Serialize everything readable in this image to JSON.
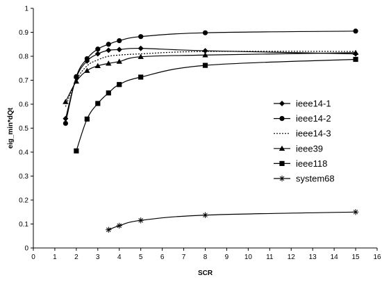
{
  "chart_data": {
    "type": "line",
    "title": "",
    "xlabel": "SCR",
    "ylabel": "eig_min*dQt",
    "xlim": [
      0,
      16
    ],
    "ylim": [
      0,
      1
    ],
    "xticks": [
      0,
      1,
      2,
      3,
      4,
      5,
      6,
      7,
      8,
      9,
      10,
      11,
      12,
      13,
      14,
      15,
      16
    ],
    "yticks": [
      0,
      0.1,
      0.2,
      0.3,
      0.4,
      0.5,
      0.6,
      0.7,
      0.8,
      0.9,
      1
    ],
    "xtick_labels": [
      "0",
      "1",
      "2",
      "3",
      "4",
      "5",
      "6",
      "7",
      "8",
      "9",
      "10",
      "11",
      "12",
      "13",
      "14",
      "15",
      "16"
    ],
    "ytick_labels": [
      "0",
      "0.1",
      "0.2",
      "0.3",
      "0.4",
      "0.5",
      "0.6",
      "0.7",
      "0.8",
      "0.9",
      "1"
    ],
    "grid": false,
    "legend_position": "right",
    "series": [
      {
        "name": "ieee14-1",
        "marker": "diamond",
        "dash": "solid",
        "x": [
          1.5,
          2,
          2.5,
          3,
          3.5,
          4,
          5,
          8,
          15
        ],
        "y": [
          0.54,
          0.71,
          0.78,
          0.81,
          0.825,
          0.828,
          0.833,
          0.823,
          0.81
        ]
      },
      {
        "name": "ieee14-2",
        "marker": "circle",
        "dash": "solid",
        "x": [
          1.5,
          2,
          2.5,
          3,
          3.5,
          4,
          5,
          8,
          15
        ],
        "y": [
          0.52,
          0.715,
          0.79,
          0.83,
          0.85,
          0.865,
          0.882,
          0.898,
          0.905
        ]
      },
      {
        "name": "ieee14-3",
        "marker": "none",
        "dash": "dotted",
        "x": [
          1.5,
          2,
          2.5,
          3,
          3.5,
          4,
          5,
          8,
          15
        ],
        "y": [
          0.59,
          0.7,
          0.76,
          0.785,
          0.8,
          0.805,
          0.81,
          0.82,
          0.82
        ]
      },
      {
        "name": "ieee39",
        "marker": "triangle",
        "dash": "solid",
        "x": [
          1.5,
          2,
          2.5,
          3,
          3.5,
          4,
          5,
          8,
          15
        ],
        "y": [
          0.61,
          0.695,
          0.74,
          0.76,
          0.77,
          0.778,
          0.798,
          0.805,
          0.815
        ]
      },
      {
        "name": "ieee118",
        "marker": "square",
        "dash": "solid",
        "x": [
          2,
          2.5,
          3,
          3.5,
          4,
          5,
          8,
          15
        ],
        "y": [
          0.405,
          0.538,
          0.603,
          0.647,
          0.682,
          0.713,
          0.762,
          0.787
        ]
      },
      {
        "name": "system68",
        "marker": "star",
        "dash": "solid",
        "x": [
          3.5,
          4,
          5,
          8,
          15
        ],
        "y": [
          0.076,
          0.093,
          0.115,
          0.137,
          0.15
        ]
      }
    ]
  }
}
